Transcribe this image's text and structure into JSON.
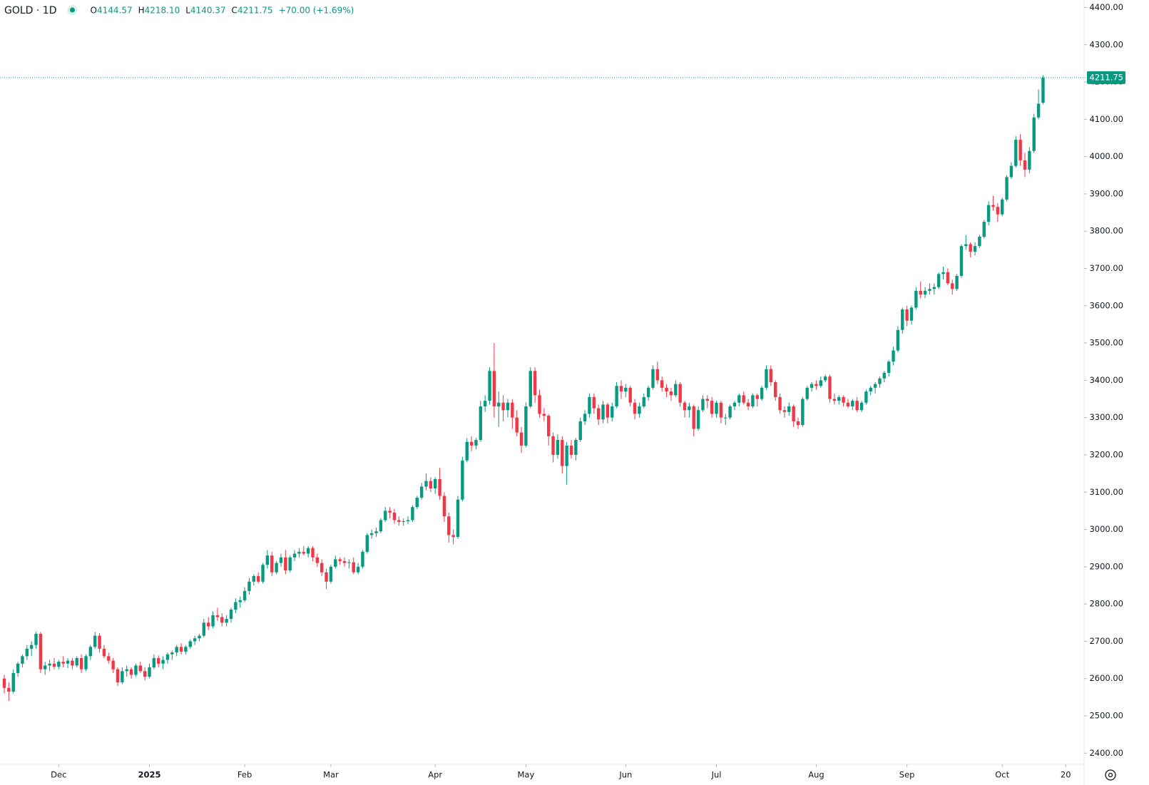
{
  "chart_data": {
    "type": "candlestick",
    "legend": {
      "symbol": "GOLD · 1D",
      "items": [
        {
          "key": "O",
          "text": "4144.57"
        },
        {
          "key": "H",
          "text": "4218.10"
        },
        {
          "key": "L",
          "text": "4140.37"
        },
        {
          "key": "C",
          "text": "4211.75"
        }
      ],
      "change": "+70.00 (+1.69%)"
    },
    "up_color": "#089981",
    "down_color": "#f23645",
    "grid": false,
    "last_price": {
      "value": 4211.75,
      "label": "4211.75"
    },
    "ylim": [
      2370,
      4420
    ],
    "yticks": [
      {
        "value": 2400,
        "label": "2400.00"
      },
      {
        "value": 2500,
        "label": "2500.00"
      },
      {
        "value": 2600,
        "label": "2600.00"
      },
      {
        "value": 2700,
        "label": "2700.00"
      },
      {
        "value": 2800,
        "label": "2800.00"
      },
      {
        "value": 2900,
        "label": "2900.00"
      },
      {
        "value": 3000,
        "label": "3000.00"
      },
      {
        "value": 3100,
        "label": "3100.00"
      },
      {
        "value": 3200,
        "label": "3200.00"
      },
      {
        "value": 3300,
        "label": "3300.00"
      },
      {
        "value": 3400,
        "label": "3400.00"
      },
      {
        "value": 3500,
        "label": "3500.00"
      },
      {
        "value": 3600,
        "label": "3600.00"
      },
      {
        "value": 3700,
        "label": "3700.00"
      },
      {
        "value": 3800,
        "label": "3800.00"
      },
      {
        "value": 3900,
        "label": "3900.00"
      },
      {
        "value": 4000,
        "label": "4000.00"
      },
      {
        "value": 4100,
        "label": "4100.00"
      },
      {
        "value": 4200,
        "label": "4200.00"
      },
      {
        "value": 4300,
        "label": "4300.00"
      },
      {
        "value": 4400,
        "label": "4400.00"
      }
    ],
    "xticks": [
      {
        "value": 12,
        "label": "Dec"
      },
      {
        "value": 32,
        "label": "2025"
      },
      {
        "value": 53,
        "label": "Feb"
      },
      {
        "value": 72,
        "label": "Mar"
      },
      {
        "value": 95,
        "label": "Apr"
      },
      {
        "value": 115,
        "label": "May"
      },
      {
        "value": 137,
        "label": "Jun"
      },
      {
        "value": 157,
        "label": "Jul"
      },
      {
        "value": 179,
        "label": "Aug"
      },
      {
        "value": 199,
        "label": "Sep"
      },
      {
        "value": 220,
        "label": "Oct"
      },
      {
        "value": 234,
        "label": "20"
      }
    ],
    "ohlc": [
      [
        2600,
        2610,
        2560,
        2575
      ],
      [
        2575,
        2590,
        2540,
        2565
      ],
      [
        2565,
        2625,
        2560,
        2615
      ],
      [
        2615,
        2645,
        2605,
        2640
      ],
      [
        2640,
        2665,
        2630,
        2660
      ],
      [
        2660,
        2690,
        2650,
        2680
      ],
      [
        2680,
        2700,
        2660,
        2690
      ],
      [
        2690,
        2725,
        2680,
        2720
      ],
      [
        2720,
        2725,
        2615,
        2625
      ],
      [
        2625,
        2645,
        2610,
        2635
      ],
      [
        2635,
        2650,
        2620,
        2640
      ],
      [
        2640,
        2655,
        2625,
        2632
      ],
      [
        2632,
        2650,
        2625,
        2645
      ],
      [
        2645,
        2660,
        2630,
        2640
      ],
      [
        2640,
        2655,
        2628,
        2648
      ],
      [
        2648,
        2655,
        2625,
        2635
      ],
      [
        2635,
        2660,
        2630,
        2655
      ],
      [
        2655,
        2665,
        2615,
        2625
      ],
      [
        2625,
        2665,
        2620,
        2660
      ],
      [
        2660,
        2690,
        2650,
        2685
      ],
      [
        2685,
        2725,
        2680,
        2715
      ],
      [
        2715,
        2722,
        2670,
        2680
      ],
      [
        2680,
        2690,
        2655,
        2660
      ],
      [
        2660,
        2670,
        2640,
        2648
      ],
      [
        2648,
        2655,
        2615,
        2625
      ],
      [
        2625,
        2630,
        2580,
        2590
      ],
      [
        2590,
        2630,
        2585,
        2620
      ],
      [
        2620,
        2635,
        2605,
        2625
      ],
      [
        2625,
        2630,
        2600,
        2610
      ],
      [
        2610,
        2640,
        2605,
        2635
      ],
      [
        2635,
        2645,
        2615,
        2620
      ],
      [
        2620,
        2630,
        2595,
        2605
      ],
      [
        2605,
        2640,
        2600,
        2630
      ],
      [
        2630,
        2665,
        2625,
        2655
      ],
      [
        2655,
        2662,
        2630,
        2640
      ],
      [
        2640,
        2660,
        2625,
        2650
      ],
      [
        2650,
        2670,
        2640,
        2665
      ],
      [
        2665,
        2675,
        2650,
        2670
      ],
      [
        2670,
        2690,
        2660,
        2685
      ],
      [
        2685,
        2695,
        2665,
        2672
      ],
      [
        2672,
        2690,
        2665,
        2685
      ],
      [
        2685,
        2705,
        2680,
        2700
      ],
      [
        2700,
        2715,
        2690,
        2708
      ],
      [
        2708,
        2720,
        2700,
        2715
      ],
      [
        2715,
        2760,
        2710,
        2750
      ],
      [
        2750,
        2765,
        2730,
        2740
      ],
      [
        2740,
        2780,
        2735,
        2770
      ],
      [
        2770,
        2790,
        2755,
        2765
      ],
      [
        2765,
        2775,
        2740,
        2750
      ],
      [
        2750,
        2770,
        2740,
        2760
      ],
      [
        2760,
        2790,
        2750,
        2785
      ],
      [
        2785,
        2815,
        2775,
        2805
      ],
      [
        2805,
        2820,
        2790,
        2810
      ],
      [
        2810,
        2845,
        2805,
        2835
      ],
      [
        2835,
        2870,
        2825,
        2860
      ],
      [
        2860,
        2880,
        2850,
        2875
      ],
      [
        2875,
        2885,
        2855,
        2860
      ],
      [
        2860,
        2910,
        2855,
        2905
      ],
      [
        2905,
        2945,
        2895,
        2930
      ],
      [
        2930,
        2940,
        2875,
        2885
      ],
      [
        2885,
        2915,
        2880,
        2910
      ],
      [
        2910,
        2935,
        2900,
        2925
      ],
      [
        2925,
        2945,
        2880,
        2890
      ],
      [
        2890,
        2930,
        2885,
        2925
      ],
      [
        2925,
        2945,
        2915,
        2935
      ],
      [
        2935,
        2950,
        2925,
        2940
      ],
      [
        2940,
        2955,
        2930,
        2935
      ],
      [
        2935,
        2955,
        2925,
        2950
      ],
      [
        2950,
        2955,
        2915,
        2925
      ],
      [
        2925,
        2935,
        2900,
        2910
      ],
      [
        2910,
        2920,
        2875,
        2885
      ],
      [
        2885,
        2895,
        2840,
        2860
      ],
      [
        2860,
        2905,
        2855,
        2900
      ],
      [
        2900,
        2930,
        2895,
        2920
      ],
      [
        2920,
        2925,
        2905,
        2915
      ],
      [
        2915,
        2925,
        2900,
        2910
      ],
      [
        2910,
        2920,
        2895,
        2912
      ],
      [
        2912,
        2925,
        2880,
        2885
      ],
      [
        2885,
        2910,
        2880,
        2900
      ],
      [
        2900,
        2945,
        2895,
        2940
      ],
      [
        2940,
        2990,
        2935,
        2985
      ],
      [
        2985,
        3000,
        2975,
        2990
      ],
      [
        2990,
        3005,
        2980,
        2995
      ],
      [
        2995,
        3030,
        2990,
        3025
      ],
      [
        3025,
        3060,
        3020,
        3050
      ],
      [
        3050,
        3060,
        3030,
        3045
      ],
      [
        3045,
        3055,
        3015,
        3025
      ],
      [
        3025,
        3035,
        3010,
        3020
      ],
      [
        3020,
        3030,
        3010,
        3022
      ],
      [
        3022,
        3035,
        3015,
        3025
      ],
      [
        3025,
        3065,
        3020,
        3060
      ],
      [
        3060,
        3090,
        3055,
        3085
      ],
      [
        3085,
        3125,
        3080,
        3115
      ],
      [
        3115,
        3150,
        3105,
        3130
      ],
      [
        3130,
        3140,
        3100,
        3110
      ],
      [
        3110,
        3140,
        3095,
        3135
      ],
      [
        3135,
        3165,
        3080,
        3090
      ],
      [
        3090,
        3100,
        3020,
        3035
      ],
      [
        3035,
        3045,
        2965,
        2985
      ],
      [
        2985,
        3000,
        2960,
        2980
      ],
      [
        2980,
        3090,
        2975,
        3080
      ],
      [
        3080,
        3195,
        3075,
        3185
      ],
      [
        3185,
        3245,
        3180,
        3235
      ],
      [
        3235,
        3250,
        3210,
        3225
      ],
      [
        3225,
        3245,
        3215,
        3240
      ],
      [
        3240,
        3345,
        3235,
        3330
      ],
      [
        3330,
        3360,
        3315,
        3345
      ],
      [
        3345,
        3435,
        3335,
        3425
      ],
      [
        3425,
        3500,
        3300,
        3330
      ],
      [
        3330,
        3370,
        3275,
        3340
      ],
      [
        3340,
        3360,
        3290,
        3320
      ],
      [
        3320,
        3350,
        3300,
        3340
      ],
      [
        3340,
        3350,
        3270,
        3300
      ],
      [
        3300,
        3320,
        3250,
        3260
      ],
      [
        3260,
        3275,
        3205,
        3225
      ],
      [
        3225,
        3340,
        3220,
        3330
      ],
      [
        3330,
        3435,
        3325,
        3425
      ],
      [
        3425,
        3435,
        3340,
        3360
      ],
      [
        3360,
        3375,
        3300,
        3310
      ],
      [
        3310,
        3325,
        3290,
        3305
      ],
      [
        3305,
        3310,
        3225,
        3250
      ],
      [
        3250,
        3260,
        3180,
        3200
      ],
      [
        3200,
        3255,
        3190,
        3240
      ],
      [
        3240,
        3250,
        3150,
        3170
      ],
      [
        3170,
        3235,
        3120,
        3225
      ],
      [
        3225,
        3240,
        3190,
        3200
      ],
      [
        3200,
        3245,
        3185,
        3240
      ],
      [
        3240,
        3300,
        3235,
        3290
      ],
      [
        3290,
        3320,
        3280,
        3310
      ],
      [
        3310,
        3365,
        3300,
        3355
      ],
      [
        3355,
        3365,
        3310,
        3325
      ],
      [
        3325,
        3335,
        3280,
        3295
      ],
      [
        3295,
        3345,
        3285,
        3335
      ],
      [
        3335,
        3340,
        3285,
        3300
      ],
      [
        3300,
        3340,
        3290,
        3330
      ],
      [
        3330,
        3395,
        3325,
        3385
      ],
      [
        3385,
        3400,
        3350,
        3370
      ],
      [
        3370,
        3390,
        3355,
        3380
      ],
      [
        3380,
        3385,
        3330,
        3340
      ],
      [
        3340,
        3350,
        3295,
        3310
      ],
      [
        3310,
        3340,
        3300,
        3330
      ],
      [
        3330,
        3365,
        3325,
        3355
      ],
      [
        3355,
        3385,
        3345,
        3380
      ],
      [
        3380,
        3440,
        3375,
        3430
      ],
      [
        3430,
        3450,
        3390,
        3400
      ],
      [
        3400,
        3410,
        3370,
        3380
      ],
      [
        3380,
        3390,
        3355,
        3370
      ],
      [
        3370,
        3380,
        3345,
        3360
      ],
      [
        3360,
        3400,
        3355,
        3390
      ],
      [
        3390,
        3395,
        3330,
        3340
      ],
      [
        3340,
        3345,
        3300,
        3320
      ],
      [
        3320,
        3340,
        3300,
        3330
      ],
      [
        3330,
        3335,
        3250,
        3270
      ],
      [
        3270,
        3330,
        3265,
        3320
      ],
      [
        3320,
        3360,
        3315,
        3350
      ],
      [
        3350,
        3360,
        3325,
        3345
      ],
      [
        3345,
        3355,
        3300,
        3310
      ],
      [
        3310,
        3345,
        3300,
        3340
      ],
      [
        3340,
        3345,
        3285,
        3300
      ],
      [
        3300,
        3310,
        3280,
        3300
      ],
      [
        3300,
        3335,
        3295,
        3330
      ],
      [
        3330,
        3345,
        3320,
        3340
      ],
      [
        3340,
        3365,
        3330,
        3360
      ],
      [
        3360,
        3370,
        3335,
        3340
      ],
      [
        3340,
        3350,
        3320,
        3330
      ],
      [
        3330,
        3365,
        3325,
        3360
      ],
      [
        3360,
        3365,
        3330,
        3350
      ],
      [
        3350,
        3385,
        3345,
        3380
      ],
      [
        3380,
        3440,
        3375,
        3430
      ],
      [
        3430,
        3440,
        3385,
        3395
      ],
      [
        3395,
        3400,
        3345,
        3355
      ],
      [
        3355,
        3365,
        3310,
        3320
      ],
      [
        3320,
        3330,
        3300,
        3315
      ],
      [
        3315,
        3340,
        3305,
        3330
      ],
      [
        3330,
        3335,
        3275,
        3290
      ],
      [
        3290,
        3300,
        3270,
        3280
      ],
      [
        3280,
        3355,
        3275,
        3350
      ],
      [
        3350,
        3385,
        3345,
        3380
      ],
      [
        3380,
        3395,
        3370,
        3390
      ],
      [
        3390,
        3400,
        3375,
        3385
      ],
      [
        3385,
        3410,
        3380,
        3400
      ],
      [
        3400,
        3415,
        3395,
        3410
      ],
      [
        3410,
        3415,
        3340,
        3350
      ],
      [
        3350,
        3365,
        3335,
        3345
      ],
      [
        3345,
        3360,
        3335,
        3355
      ],
      [
        3355,
        3360,
        3330,
        3340
      ],
      [
        3340,
        3350,
        3325,
        3330
      ],
      [
        3330,
        3350,
        3320,
        3345
      ],
      [
        3345,
        3355,
        3315,
        3320
      ],
      [
        3320,
        3345,
        3315,
        3340
      ],
      [
        3340,
        3375,
        3335,
        3370
      ],
      [
        3370,
        3385,
        3360,
        3380
      ],
      [
        3380,
        3395,
        3365,
        3390
      ],
      [
        3390,
        3410,
        3380,
        3405
      ],
      [
        3405,
        3425,
        3395,
        3420
      ],
      [
        3420,
        3455,
        3410,
        3450
      ],
      [
        3450,
        3490,
        3440,
        3480
      ],
      [
        3480,
        3545,
        3475,
        3535
      ],
      [
        3535,
        3595,
        3525,
        3590
      ],
      [
        3590,
        3600,
        3545,
        3560
      ],
      [
        3560,
        3600,
        3550,
        3595
      ],
      [
        3595,
        3650,
        3590,
        3640
      ],
      [
        3640,
        3665,
        3620,
        3630
      ],
      [
        3630,
        3650,
        3620,
        3640
      ],
      [
        3640,
        3660,
        3630,
        3645
      ],
      [
        3645,
        3660,
        3630,
        3650
      ],
      [
        3650,
        3690,
        3645,
        3685
      ],
      [
        3685,
        3705,
        3670,
        3690
      ],
      [
        3690,
        3700,
        3655,
        3660
      ],
      [
        3660,
        3670,
        3630,
        3645
      ],
      [
        3645,
        3685,
        3640,
        3680
      ],
      [
        3680,
        3765,
        3675,
        3760
      ],
      [
        3760,
        3790,
        3750,
        3765
      ],
      [
        3765,
        3770,
        3730,
        3745
      ],
      [
        3745,
        3770,
        3735,
        3760
      ],
      [
        3760,
        3790,
        3755,
        3785
      ],
      [
        3785,
        3830,
        3780,
        3825
      ],
      [
        3825,
        3880,
        3815,
        3870
      ],
      [
        3870,
        3895,
        3855,
        3865
      ],
      [
        3865,
        3875,
        3825,
        3845
      ],
      [
        3845,
        3890,
        3840,
        3885
      ],
      [
        3885,
        3950,
        3880,
        3945
      ],
      [
        3945,
        3985,
        3940,
        3975
      ],
      [
        3975,
        4055,
        3970,
        4045
      ],
      [
        4045,
        4060,
        3975,
        3990
      ],
      [
        3990,
        4010,
        3945,
        3965
      ],
      [
        3965,
        4025,
        3955,
        4015
      ],
      [
        4015,
        4115,
        4010,
        4105
      ],
      [
        4105,
        4180,
        4100,
        4141.75
      ],
      [
        4144.57,
        4218.1,
        4140.37,
        4211.75
      ]
    ]
  }
}
